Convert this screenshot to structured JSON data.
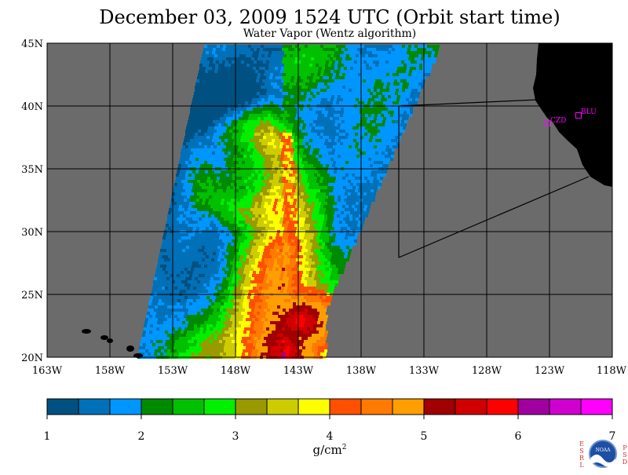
{
  "title": "December 03, 2009  1524 UTC  (Orbit start time)",
  "subtitle": "Water Vapor (Wentz algorithm)",
  "map": {
    "lat_labels": [
      "45N",
      "40N",
      "35N",
      "30N",
      "25N",
      "20N"
    ],
    "lon_labels": [
      "163W",
      "158W",
      "153W",
      "148W",
      "143W",
      "138W",
      "133W",
      "128W",
      "123W",
      "118W"
    ],
    "stations": [
      {
        "name": "CZD"
      },
      {
        "name": "BLU"
      }
    ],
    "colors": {
      "missing": "#6b6b6b",
      "land": "#000000",
      "grid": "#000000",
      "station": "#ff00ff"
    }
  },
  "colorbar": {
    "colors": [
      "#005181",
      "#0070b8",
      "#0096ff",
      "#008a00",
      "#00c000",
      "#00f000",
      "#999900",
      "#cccc00",
      "#ffff00",
      "#ff5000",
      "#ff7a00",
      "#ff9e00",
      "#a00000",
      "#d00000",
      "#ff0000",
      "#a000a0",
      "#d000d0",
      "#ff00ff"
    ],
    "tick_labels": [
      "1",
      "2",
      "3",
      "4",
      "5",
      "6",
      "7"
    ],
    "unit_base": "g/cm",
    "unit_exp": "2"
  },
  "logo": {
    "left_letters": [
      "E",
      "S",
      "R",
      "L"
    ],
    "right_letters": [
      "P",
      "S",
      "D"
    ],
    "center": "NOAA"
  }
}
